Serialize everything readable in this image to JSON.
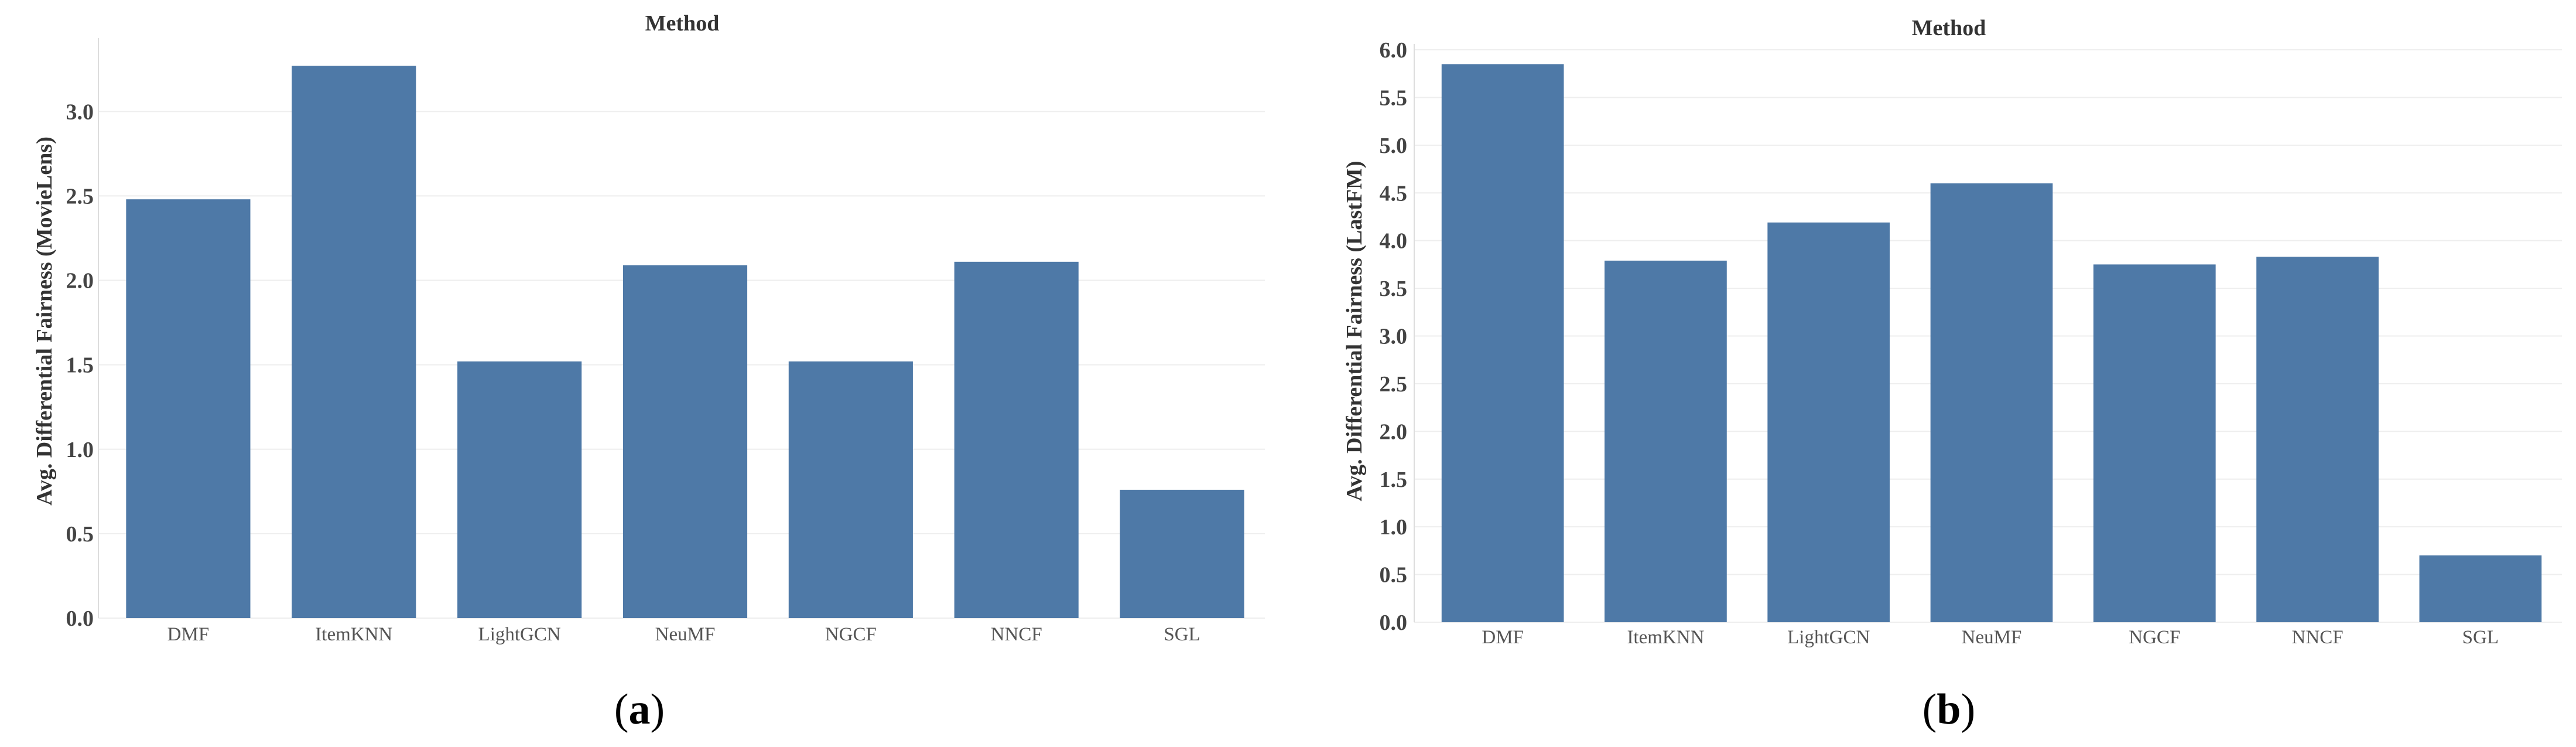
{
  "chart_data": [
    {
      "type": "bar",
      "title": "Method",
      "xlabel": "",
      "ylabel": "Avg. Differential Fairness (MovieLens)",
      "categories": [
        "DMF",
        "ItemKNN",
        "LightGCN",
        "NeuMF",
        "NGCF",
        "NNCF",
        "SGL"
      ],
      "values": [
        2.48,
        3.27,
        1.52,
        2.09,
        1.52,
        2.11,
        0.76
      ],
      "yticks": [
        "0.0",
        "0.5",
        "1.0",
        "1.5",
        "2.0",
        "2.5",
        "3.0"
      ],
      "ylim": [
        0,
        3.4
      ],
      "grid": true,
      "color": "#4e79a7",
      "caption_open": "(",
      "caption_letter": "a",
      "caption_close": ")"
    },
    {
      "type": "bar",
      "title": "Method",
      "xlabel": "",
      "ylabel": "Avg. Differential Fairness (LastFM)",
      "categories": [
        "DMF",
        "ItemKNN",
        "LightGCN",
        "NeuMF",
        "NGCF",
        "NNCF",
        "SGL"
      ],
      "values": [
        5.85,
        3.79,
        4.19,
        4.6,
        3.75,
        3.83,
        0.7
      ],
      "yticks": [
        "0.0",
        "0.5",
        "1.0",
        "1.5",
        "2.0",
        "2.5",
        "3.0",
        "3.5",
        "4.0",
        "4.5",
        "5.0",
        "5.5",
        "6.0"
      ],
      "ylim": [
        0,
        6.0
      ],
      "grid": true,
      "color": "#4e79a7",
      "caption_open": "(",
      "caption_letter": "b",
      "caption_close": ")"
    }
  ]
}
